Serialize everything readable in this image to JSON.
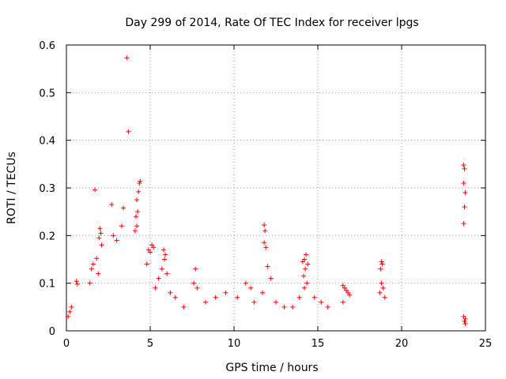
{
  "chart_data": {
    "type": "scatter",
    "title": "Day 299 of 2014, Rate Of TEC Index for receiver lpgs",
    "xlabel": "GPS time / hours",
    "ylabel": "ROTI / TECUs",
    "xlim": [
      0,
      25
    ],
    "ylim": [
      0,
      0.6
    ],
    "xticks": [
      0,
      5,
      10,
      15,
      20,
      25
    ],
    "yticks": [
      0,
      0.1,
      0.2,
      0.3,
      0.4,
      0.5,
      0.6
    ],
    "xtick_labels": [
      "0",
      "5",
      "10",
      "15",
      "20",
      "25"
    ],
    "ytick_labels": [
      "0",
      "0.1",
      "0.2",
      "0.3",
      "0.4",
      "0.5",
      "0.6"
    ],
    "grid": true,
    "marker": "+",
    "color": "#ff0000",
    "series": [
      {
        "name": "ROTI",
        "points": [
          [
            3.6,
            0.573
          ],
          [
            3.7,
            0.418
          ],
          [
            4.4,
            0.314
          ],
          [
            4.35,
            0.31
          ],
          [
            4.3,
            0.292
          ],
          [
            4.2,
            0.275
          ],
          [
            4.25,
            0.25
          ],
          [
            4.15,
            0.24
          ],
          [
            4.2,
            0.22
          ],
          [
            4.1,
            0.21
          ],
          [
            1.7,
            0.296
          ],
          [
            2.0,
            0.215
          ],
          [
            2.05,
            0.205
          ],
          [
            1.95,
            0.195
          ],
          [
            2.1,
            0.18
          ],
          [
            2.7,
            0.265
          ],
          [
            3.4,
            0.258
          ],
          [
            3.3,
            0.22
          ],
          [
            2.8,
            0.2
          ],
          [
            3.0,
            0.19
          ],
          [
            1.5,
            0.13
          ],
          [
            1.6,
            0.14
          ],
          [
            1.8,
            0.152
          ],
          [
            1.9,
            0.12
          ],
          [
            1.4,
            0.1
          ],
          [
            0.6,
            0.104
          ],
          [
            0.65,
            0.098
          ],
          [
            0.3,
            0.05
          ],
          [
            0.2,
            0.04
          ],
          [
            0.1,
            0.03
          ],
          [
            4.9,
            0.17
          ],
          [
            5.0,
            0.165
          ],
          [
            5.1,
            0.18
          ],
          [
            5.2,
            0.175
          ],
          [
            4.8,
            0.14
          ],
          [
            5.8,
            0.17
          ],
          [
            5.9,
            0.16
          ],
          [
            5.85,
            0.15
          ],
          [
            5.7,
            0.13
          ],
          [
            6.0,
            0.12
          ],
          [
            5.5,
            0.11
          ],
          [
            5.3,
            0.09
          ],
          [
            6.2,
            0.08
          ],
          [
            6.5,
            0.07
          ],
          [
            7.0,
            0.05
          ],
          [
            7.7,
            0.13
          ],
          [
            7.6,
            0.1
          ],
          [
            7.8,
            0.09
          ],
          [
            8.3,
            0.06
          ],
          [
            8.9,
            0.07
          ],
          [
            9.5,
            0.08
          ],
          [
            10.2,
            0.07
          ],
          [
            10.7,
            0.1
          ],
          [
            11.0,
            0.09
          ],
          [
            11.2,
            0.06
          ],
          [
            11.8,
            0.222
          ],
          [
            11.85,
            0.21
          ],
          [
            11.8,
            0.185
          ],
          [
            11.9,
            0.175
          ],
          [
            12.0,
            0.135
          ],
          [
            12.2,
            0.11
          ],
          [
            11.7,
            0.08
          ],
          [
            12.5,
            0.06
          ],
          [
            13.0,
            0.05
          ],
          [
            13.5,
            0.05
          ],
          [
            14.1,
            0.145
          ],
          [
            14.2,
            0.15
          ],
          [
            14.3,
            0.16
          ],
          [
            14.4,
            0.14
          ],
          [
            14.25,
            0.13
          ],
          [
            14.15,
            0.115
          ],
          [
            14.35,
            0.1
          ],
          [
            14.2,
            0.09
          ],
          [
            13.9,
            0.07
          ],
          [
            14.8,
            0.07
          ],
          [
            15.2,
            0.06
          ],
          [
            15.6,
            0.05
          ],
          [
            16.5,
            0.095
          ],
          [
            16.6,
            0.09
          ],
          [
            16.7,
            0.085
          ],
          [
            16.8,
            0.08
          ],
          [
            16.9,
            0.075
          ],
          [
            16.5,
            0.06
          ],
          [
            18.8,
            0.145
          ],
          [
            18.85,
            0.14
          ],
          [
            18.75,
            0.13
          ],
          [
            18.8,
            0.1
          ],
          [
            18.9,
            0.09
          ],
          [
            18.7,
            0.08
          ],
          [
            19.0,
            0.07
          ],
          [
            23.7,
            0.348
          ],
          [
            23.75,
            0.34
          ],
          [
            23.7,
            0.31
          ],
          [
            23.8,
            0.29
          ],
          [
            23.75,
            0.26
          ],
          [
            23.7,
            0.225
          ],
          [
            23.7,
            0.03
          ],
          [
            23.8,
            0.025
          ],
          [
            23.75,
            0.02
          ],
          [
            23.8,
            0.015
          ]
        ]
      }
    ]
  }
}
